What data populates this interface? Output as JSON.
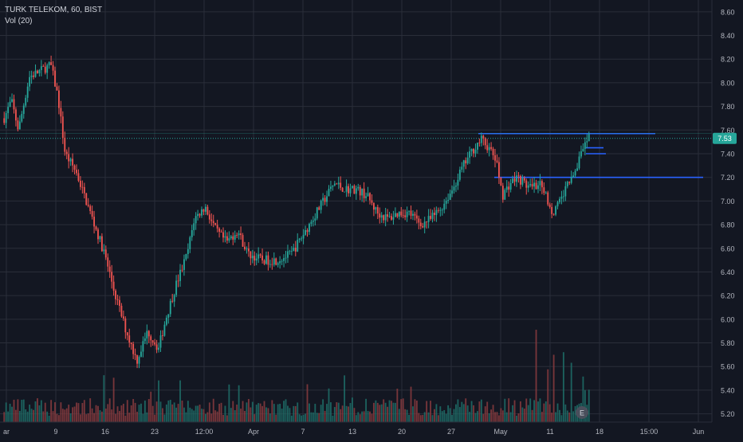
{
  "legend": {
    "symbol_line": "TURK TELEKOM, 60, BIST",
    "volume_line": "Vol (20)"
  },
  "earnings_marker": "E",
  "colors": {
    "background": "#131722",
    "grid": "#2a2e39",
    "up": "#26a69a",
    "down": "#ef5350",
    "volume_up": "#1e6f68",
    "volume_down": "#8a3b3e",
    "axis_text": "#b2b5be",
    "hline_blue": "#2962ff",
    "price_line": "#26a69a"
  },
  "chart_data": {
    "type": "candlestick",
    "title": "TURK TELEKOM, 60, BIST",
    "y_ticks": [
      "8.60",
      "8.40",
      "8.20",
      "8.00",
      "7.80",
      "7.60",
      "7.40",
      "7.20",
      "7.00",
      "6.80",
      "6.60",
      "6.40",
      "6.20",
      "6.00",
      "5.80",
      "5.60",
      "5.40",
      "5.20"
    ],
    "ylim": [
      5.13,
      8.7
    ],
    "x_labels": [
      "ar",
      "9",
      "16",
      "23",
      "12:00",
      "Apr",
      "7",
      "13",
      "20",
      "27",
      "May",
      "11",
      "18",
      "15:00",
      "Jun"
    ],
    "last_price": "7.53",
    "horizontal_lines": [
      7.57,
      7.45,
      7.4,
      7.2
    ],
    "price_path": [
      [
        0,
        7.7
      ],
      [
        0.01,
        7.85
      ],
      [
        0.02,
        7.6
      ],
      [
        0.035,
        8.05
      ],
      [
        0.05,
        8.1
      ],
      [
        0.065,
        8.15
      ],
      [
        0.075,
        7.88
      ],
      [
        0.085,
        7.4
      ],
      [
        0.1,
        7.25
      ],
      [
        0.12,
        6.9
      ],
      [
        0.14,
        6.55
      ],
      [
        0.155,
        6.2
      ],
      [
        0.17,
        5.9
      ],
      [
        0.185,
        5.65
      ],
      [
        0.2,
        5.9
      ],
      [
        0.215,
        5.75
      ],
      [
        0.225,
        6.0
      ],
      [
        0.24,
        6.3
      ],
      [
        0.255,
        6.55
      ],
      [
        0.265,
        6.85
      ],
      [
        0.28,
        6.95
      ],
      [
        0.295,
        6.75
      ],
      [
        0.31,
        6.65
      ],
      [
        0.325,
        6.75
      ],
      [
        0.34,
        6.55
      ],
      [
        0.36,
        6.5
      ],
      [
        0.38,
        6.5
      ],
      [
        0.4,
        6.55
      ],
      [
        0.415,
        6.7
      ],
      [
        0.43,
        6.85
      ],
      [
        0.445,
        7.0
      ],
      [
        0.46,
        7.15
      ],
      [
        0.475,
        7.1
      ],
      [
        0.49,
        7.1
      ],
      [
        0.505,
        7.05
      ],
      [
        0.52,
        6.9
      ],
      [
        0.535,
        6.85
      ],
      [
        0.55,
        6.9
      ],
      [
        0.565,
        6.9
      ],
      [
        0.58,
        6.8
      ],
      [
        0.595,
        6.85
      ],
      [
        0.61,
        6.95
      ],
      [
        0.625,
        7.1
      ],
      [
        0.64,
        7.3
      ],
      [
        0.655,
        7.45
      ],
      [
        0.665,
        7.52
      ],
      [
        0.675,
        7.45
      ],
      [
        0.685,
        7.35
      ],
      [
        0.695,
        7.05
      ],
      [
        0.705,
        7.15
      ],
      [
        0.715,
        7.2
      ],
      [
        0.725,
        7.15
      ],
      [
        0.735,
        7.1
      ],
      [
        0.745,
        7.15
      ],
      [
        0.755,
        7.05
      ],
      [
        0.765,
        6.9
      ],
      [
        0.775,
        7.0
      ],
      [
        0.79,
        7.2
      ],
      [
        0.805,
        7.4
      ],
      [
        0.815,
        7.53
      ]
    ]
  }
}
